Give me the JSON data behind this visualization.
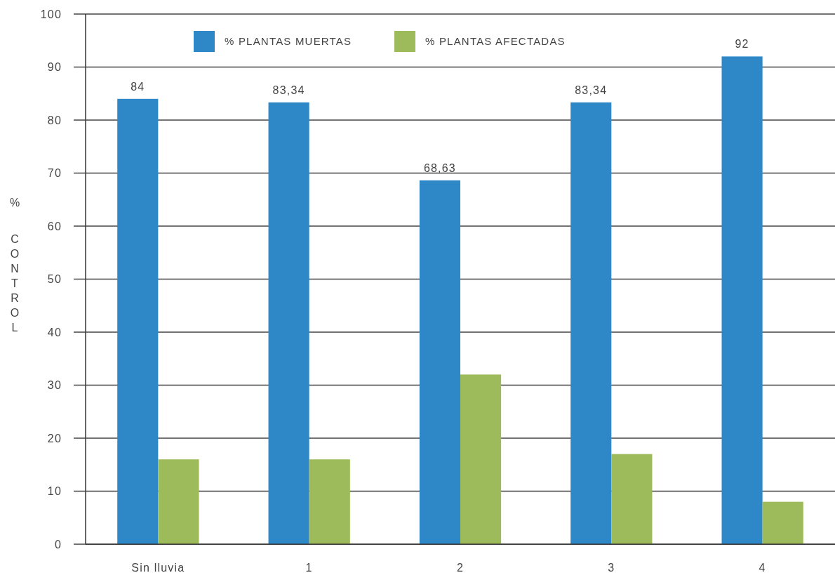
{
  "chart_data": {
    "type": "bar",
    "categories": [
      "Sin lluvia",
      "1",
      "2",
      "3",
      "4"
    ],
    "series": [
      {
        "name": "% PLANTAS MUERTAS",
        "color": "#2e88c8",
        "values": [
          84,
          83.34,
          68.63,
          83.34,
          92
        ],
        "value_labels": [
          "84",
          "83,34",
          "68,63",
          "83,34",
          "92"
        ]
      },
      {
        "name": "% PLANTAS AFECTADAS",
        "color": "#9dbb5a",
        "values": [
          16,
          16,
          32,
          17,
          8
        ]
      }
    ],
    "ylabel": "% CONTROL",
    "ylim": [
      0,
      100
    ],
    "yticks": [
      0,
      10,
      20,
      30,
      40,
      50,
      60,
      70,
      80,
      90,
      100
    ],
    "grid": "y",
    "legend": "top"
  }
}
